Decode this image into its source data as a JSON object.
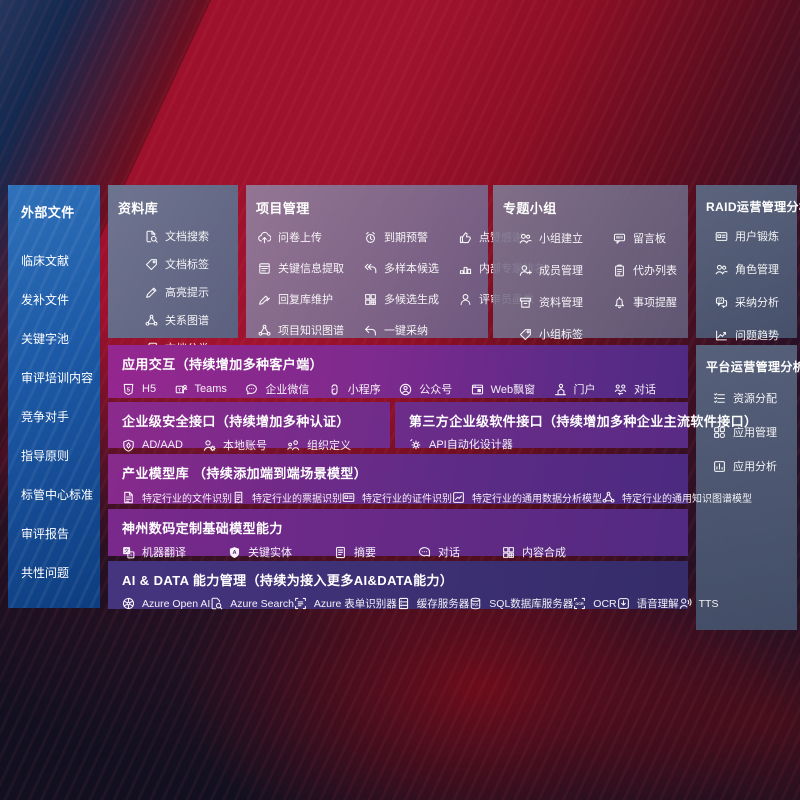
{
  "colors": {
    "sidebar_blue": "#1c59a6",
    "panel_slate": "#66758f",
    "row_purple": "#7e2a8e",
    "row_indigo": "#3a2f72",
    "background_red": "#8c0f26"
  },
  "sidebar": {
    "title": "外部文件",
    "items": [
      "临床文献",
      "发补文件",
      "关键字池",
      "审评培训内容",
      "竞争对手",
      "指导原则",
      "标管中心标准",
      "审评报告",
      "共性问题"
    ]
  },
  "panels": {
    "library": {
      "title": "资料库",
      "items": [
        {
          "icon": "doc-search",
          "label": "文档搜索"
        },
        {
          "icon": "tag",
          "label": "文档标签"
        },
        {
          "icon": "highlight-pen",
          "label": "高亮提示"
        },
        {
          "icon": "knowledge-graph",
          "label": "关系图谱"
        },
        {
          "icon": "doc-copy",
          "label": "文档分类"
        }
      ]
    },
    "project": {
      "title": "项目管理",
      "items": [
        {
          "icon": "cloud-upload",
          "label": "问卷上传"
        },
        {
          "icon": "alarm-warning",
          "label": "到期预警"
        },
        {
          "icon": "thumbs-up",
          "label": "点赞感谢"
        },
        {
          "icon": "doc-extract",
          "label": "关键信息提取"
        },
        {
          "icon": "reply-arrows",
          "label": "多样本候选"
        },
        {
          "icon": "ranking-podium",
          "label": "内部专家排名"
        },
        {
          "icon": "edit-pen",
          "label": "回复库维护"
        },
        {
          "icon": "puzzle-grid",
          "label": "多候选生成"
        },
        {
          "icon": "person",
          "label": "评审员画像"
        },
        {
          "icon": "knowledge-graph",
          "label": "项目知识图谱"
        },
        {
          "icon": "adopt-arrow",
          "label": "一键采纳"
        }
      ]
    },
    "group": {
      "title": "专题小组",
      "items": [
        {
          "icon": "people-group",
          "label": "小组建立"
        },
        {
          "icon": "message-board",
          "label": "留言板"
        },
        {
          "icon": "person-add",
          "label": "成员管理"
        },
        {
          "icon": "todo-clipboard",
          "label": "代办列表"
        },
        {
          "icon": "archive-box",
          "label": "资料管理"
        },
        {
          "icon": "bell",
          "label": "事项提醒"
        },
        {
          "icon": "tag",
          "label": "小组标签"
        }
      ]
    },
    "raid": {
      "title": "RAID运营管理分析",
      "items": [
        {
          "icon": "id-card",
          "label": "用户锻炼"
        },
        {
          "icon": "people-group",
          "label": "角色管理"
        },
        {
          "icon": "qa-chat",
          "label": "采纳分析"
        },
        {
          "icon": "trend-chart",
          "label": "问题趋势"
        }
      ]
    },
    "platform": {
      "title": "平台运营管理分析",
      "items": [
        {
          "icon": "task-list",
          "label": "资源分配"
        },
        {
          "icon": "app-grid",
          "label": "应用管理"
        },
        {
          "icon": "app-chart",
          "label": "应用分析"
        }
      ]
    },
    "interaction": {
      "title": "应用交互（持续增加多种客户端）",
      "items": [
        {
          "icon": "html5",
          "label": "H5"
        },
        {
          "icon": "teams",
          "label": "Teams"
        },
        {
          "icon": "wechat-chat",
          "label": "企业微信"
        },
        {
          "icon": "miniprogram",
          "label": "小程序"
        },
        {
          "icon": "official-account",
          "label": "公众号"
        },
        {
          "icon": "web-window",
          "label": "Web飘窗"
        },
        {
          "icon": "portal-person",
          "label": "门户"
        },
        {
          "icon": "dialog-people",
          "label": "对话"
        }
      ]
    },
    "security": {
      "title": "企业级安全接口（持续增加多种认证）",
      "items": [
        {
          "icon": "shield-diamond",
          "label": "AD/AAD"
        },
        {
          "icon": "person-gear",
          "label": "本地账号"
        },
        {
          "icon": "org-people",
          "label": "组织定义"
        }
      ]
    },
    "thirdparty": {
      "title": "第三方企业级软件接口（持续增加多种企业主流软件接口）",
      "items": [
        {
          "icon": "api-gear",
          "label": "API自动化设计器"
        }
      ]
    },
    "industry": {
      "title": "产业模型库 （持续添加端到端场景模型）",
      "items": [
        {
          "icon": "doc-file",
          "label": "特定行业的文件识别"
        },
        {
          "icon": "receipt",
          "label": "特定行业的票据识别"
        },
        {
          "icon": "id-card",
          "label": "特定行业的证件识别"
        },
        {
          "icon": "chart-box",
          "label": "特定行业的通用数据分析模型"
        },
        {
          "icon": "knowledge-graph",
          "label": "特定行业的通用知识图谱模型"
        }
      ]
    },
    "basemodel": {
      "title": "神州数码定制基础模型能力",
      "items": [
        {
          "icon": "translate",
          "label": "机器翻译"
        },
        {
          "icon": "shield-a",
          "label": "关键实体"
        },
        {
          "icon": "doc-summary",
          "label": "摘要"
        },
        {
          "icon": "chat-dots",
          "label": "对话"
        },
        {
          "icon": "puzzle-grid",
          "label": "内容合成"
        }
      ]
    },
    "aidata": {
      "title": "AI & DATA 能力管理（持续为接入更多AI&DATA能力）",
      "items": [
        {
          "icon": "openai",
          "label": "Azure Open AI"
        },
        {
          "icon": "azure-search",
          "label": "Azure Search"
        },
        {
          "icon": "form-brackets",
          "label": "Azure 表单识别器"
        },
        {
          "icon": "cache-server",
          "label": "缓存服务器"
        },
        {
          "icon": "sql-db",
          "label": "SQL数据库服务器"
        },
        {
          "icon": "ocr-brackets",
          "label": "OCR"
        },
        {
          "icon": "speech-arrow",
          "label": "语音理解"
        },
        {
          "icon": "tts-speaker",
          "label": "TTS"
        }
      ]
    }
  }
}
